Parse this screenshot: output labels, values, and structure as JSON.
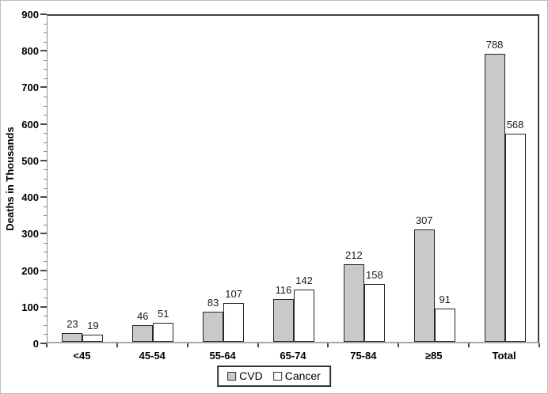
{
  "chart_data": {
    "type": "bar",
    "title": "",
    "xlabel": "",
    "ylabel": "Deaths in Thousands",
    "ylim": [
      0,
      900
    ],
    "yticks": [
      0,
      100,
      200,
      300,
      400,
      500,
      600,
      700,
      800,
      900
    ],
    "minor_tick_interval": 25,
    "grid": false,
    "legend_position": "bottom",
    "categories": [
      "<45",
      "45-54",
      "55-64",
      "65-74",
      "75-84",
      "≥85",
      "Total"
    ],
    "series": [
      {
        "name": "CVD",
        "color": "#c9c9c9",
        "values": [
          23,
          46,
          83,
          116,
          212,
          307,
          788
        ]
      },
      {
        "name": "Cancer",
        "color": "#ffffff",
        "values": [
          19,
          51,
          107,
          142,
          158,
          91,
          568
        ]
      }
    ]
  },
  "colors": {
    "bar_border": "#262626",
    "frame": "#404040",
    "axis_line": "#a6a6a6",
    "text": "#000000"
  }
}
